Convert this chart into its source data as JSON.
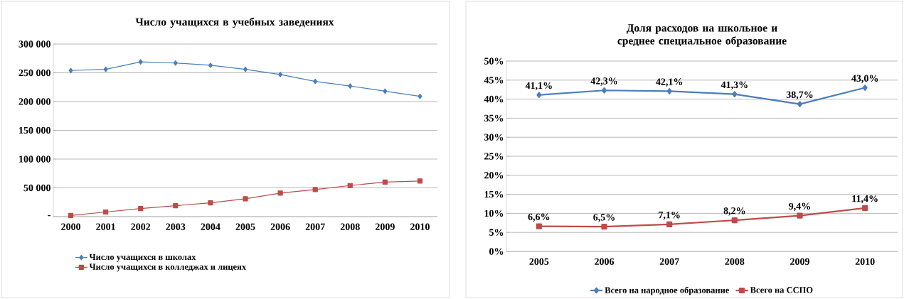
{
  "chart_data": [
    {
      "type": "line",
      "title": "Число учащихся в учебных заведениях",
      "categories": [
        "2000",
        "2001",
        "2002",
        "2003",
        "2004",
        "2005",
        "2006",
        "2007",
        "2008",
        "2009",
        "2010"
      ],
      "series": [
        {
          "name": "Число учащихся в школах",
          "color": "#4a7ebb",
          "marker": "diamond",
          "values": [
            254000,
            256000,
            269000,
            267000,
            263000,
            256000,
            247000,
            235000,
            227000,
            218000,
            209000
          ]
        },
        {
          "name": "Число учащихся в колледжах и лицеях",
          "color": "#be4b48",
          "marker": "square",
          "values": [
            2000,
            8000,
            14000,
            19000,
            24000,
            31000,
            41000,
            47000,
            54000,
            60000,
            62000
          ]
        }
      ],
      "ylim": [
        0,
        300000
      ],
      "yticks": [
        {
          "value": 0,
          "label": "-"
        },
        {
          "value": 50000,
          "label": "50 000"
        },
        {
          "value": 100000,
          "label": "100 000"
        },
        {
          "value": 150000,
          "label": "150 000"
        },
        {
          "value": 200000,
          "label": "200 000"
        },
        {
          "value": 250000,
          "label": "250 000"
        },
        {
          "value": 300000,
          "label": "300 000"
        }
      ],
      "grid": "y",
      "legend": "bottom left"
    },
    {
      "type": "line",
      "title": "Доля расходов на школьное и среднее специальное образование",
      "categories": [
        "2005",
        "2006",
        "2007",
        "2008",
        "2009",
        "2010"
      ],
      "series": [
        {
          "name": "Всего на народное образование",
          "color": "#4a7ebb",
          "marker": "diamond",
          "values": [
            41.1,
            42.3,
            42.1,
            41.3,
            38.7,
            43.0
          ],
          "value_labels": [
            "41,1%",
            "42,3%",
            "42,1%",
            "41,3%",
            "38,7%",
            "43,0%"
          ]
        },
        {
          "name": "Всего на ССПО",
          "color": "#be4b48",
          "marker": "square",
          "values": [
            6.6,
            6.5,
            7.1,
            8.2,
            9.4,
            11.4
          ],
          "value_labels": [
            "6,6%",
            "6,5%",
            "7,1%",
            "8,2%",
            "9,4%",
            "11,4%"
          ]
        }
      ],
      "ylim": [
        0,
        50
      ],
      "yticks": [
        {
          "value": 0,
          "label": "0%"
        },
        {
          "value": 5,
          "label": "5%"
        },
        {
          "value": 10,
          "label": "10%"
        },
        {
          "value": 15,
          "label": "15%"
        },
        {
          "value": 20,
          "label": "20%"
        },
        {
          "value": 25,
          "label": "25%"
        },
        {
          "value": 30,
          "label": "30%"
        },
        {
          "value": 35,
          "label": "35%"
        },
        {
          "value": 40,
          "label": "40%"
        },
        {
          "value": 45,
          "label": "45%"
        },
        {
          "value": 50,
          "label": "50%"
        }
      ],
      "grid": "y",
      "legend": "bottom"
    }
  ]
}
